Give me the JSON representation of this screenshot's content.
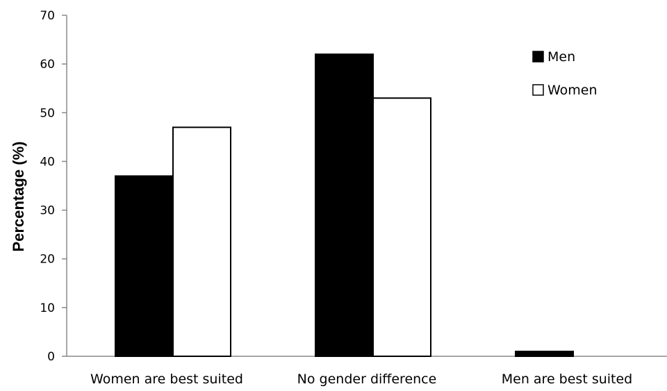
{
  "chart_data": {
    "type": "bar",
    "title": "",
    "xlabel": "",
    "ylabel": "Percentage (%)",
    "ylim": [
      0,
      70
    ],
    "yticks": [
      0,
      10,
      20,
      30,
      40,
      50,
      60,
      70
    ],
    "grid": false,
    "legend_position": "top-right",
    "categories": [
      "Women are best suited",
      "No gender difference",
      "Men are best suited"
    ],
    "series": [
      {
        "name": "Men",
        "values": [
          37,
          62,
          1
        ],
        "color": "#000000",
        "fill": "#000000"
      },
      {
        "name": "Women",
        "values": [
          47,
          53,
          0
        ],
        "color": "#000000",
        "fill": "#ffffff"
      }
    ]
  }
}
